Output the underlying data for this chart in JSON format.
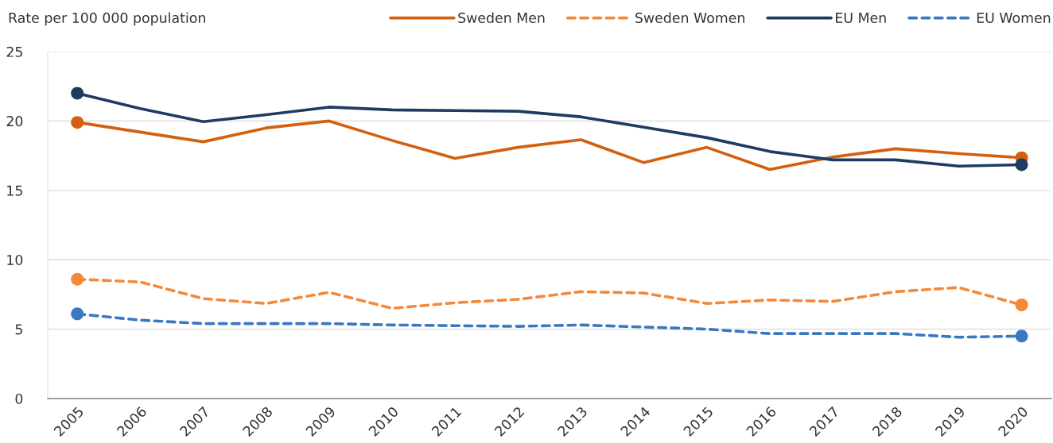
{
  "chart_data": {
    "type": "line",
    "ylabel": "Rate per 100 000 population",
    "categories": [
      "2005",
      "2006",
      "2007",
      "2008",
      "2009",
      "2010",
      "2011",
      "2012",
      "2013",
      "2014",
      "2015",
      "2016",
      "2017",
      "2018",
      "2019",
      "2020"
    ],
    "series": [
      {
        "name": "Sweden Men",
        "color": "#d45f0f",
        "line_style": "solid",
        "values": [
          19.9,
          19.2,
          18.5,
          19.5,
          20.0,
          18.6,
          17.3,
          18.1,
          18.65,
          17.0,
          18.1,
          16.5,
          17.4,
          18.0,
          17.65,
          17.35
        ]
      },
      {
        "name": "Sweden Women",
        "color": "#f4893a",
        "line_style": "dashed",
        "values": [
          8.6,
          8.4,
          7.2,
          6.85,
          7.65,
          6.5,
          6.9,
          7.15,
          7.7,
          7.6,
          6.85,
          7.1,
          7.0,
          7.7,
          8.0,
          6.75
        ]
      },
      {
        "name": "EU Men",
        "color": "#1e3c61",
        "line_style": "solid",
        "values": [
          22.0,
          20.9,
          19.95,
          20.45,
          21.0,
          20.8,
          20.75,
          20.7,
          20.3,
          19.55,
          18.8,
          17.8,
          17.2,
          17.2,
          16.75,
          16.85
        ]
      },
      {
        "name": "EU Women",
        "color": "#3a78c0",
        "line_style": "dashed",
        "values": [
          6.1,
          5.65,
          5.4,
          5.4,
          5.4,
          5.3,
          5.25,
          5.2,
          5.3,
          5.15,
          5.0,
          4.68,
          4.68,
          4.68,
          4.42,
          4.5
        ]
      },
      {
        "type": "scatter",
        "color": "#d45f0f",
        "marker": "circle",
        "values": [
          19.9,
          null,
          null,
          null,
          null,
          null,
          null,
          null,
          null,
          null,
          null,
          null,
          null,
          null,
          null,
          17.35
        ]
      },
      {
        "type": "scatter",
        "color": "#f4893a",
        "marker": "circle",
        "values": [
          8.6,
          null,
          null,
          null,
          null,
          null,
          null,
          null,
          null,
          null,
          null,
          null,
          null,
          null,
          null,
          6.75
        ]
      },
      {
        "type": "scatter",
        "color": "#1e3c61",
        "marker": "circle",
        "values": [
          22.0,
          null,
          null,
          null,
          null,
          null,
          null,
          null,
          null,
          null,
          null,
          null,
          null,
          null,
          null,
          16.85
        ]
      },
      {
        "type": "scatter",
        "color": "#3a78c0",
        "marker": "circle",
        "values": [
          6.1,
          null,
          null,
          null,
          null,
          null,
          null,
          null,
          null,
          null,
          null,
          null,
          null,
          null,
          null,
          4.5
        ]
      }
    ],
    "ylim": [
      0,
      25
    ],
    "yticks": [
      0,
      5,
      10,
      15,
      20,
      25
    ],
    "grid": "y",
    "legend": "top right"
  }
}
